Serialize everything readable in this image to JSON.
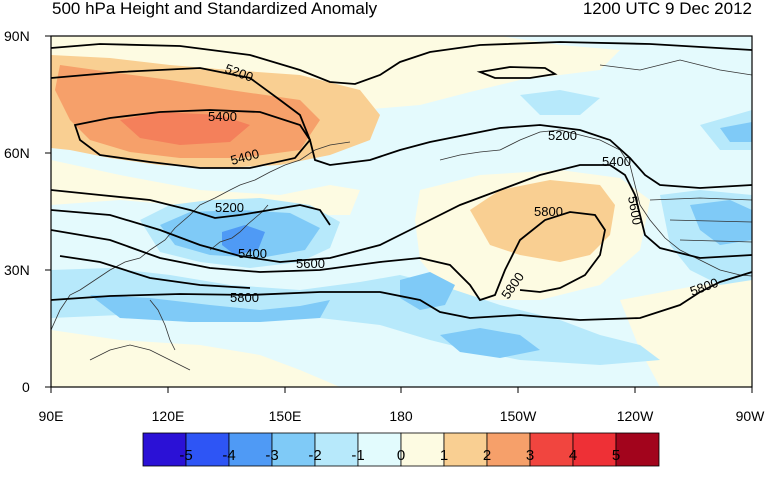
{
  "header": {
    "title": "500 hPa Height and Standardized Anomaly",
    "timestamp": "1200 UTC 9 Dec 2012"
  },
  "axes": {
    "lat_labels": [
      "90N",
      "60N",
      "30N",
      "0"
    ],
    "lon_labels": [
      "90E",
      "120E",
      "150E",
      "180",
      "150W",
      "120W",
      "90W"
    ]
  },
  "contour_labels": [
    "5200",
    "5400",
    "5400",
    "5200",
    "5400",
    "5600",
    "5800",
    "5200",
    "5400",
    "5600",
    "5800",
    "5800",
    "5800"
  ],
  "colorbar": {
    "labels": [
      "-5",
      "-4",
      "-3",
      "-2",
      "-1",
      "0",
      "1",
      "2",
      "3",
      "4",
      "5"
    ],
    "colors": [
      "#2b11d6",
      "#2e55f5",
      "#4f9af5",
      "#7fcaf7",
      "#b7e9fb",
      "#e2fbfd",
      "#fdfbe2",
      "#f9cf92",
      "#f6a06a",
      "#f1453f",
      "#ee3036",
      "#a2041c"
    ]
  },
  "colors": {
    "ocean_neutral": "#e6fafd",
    "land_line": "#333333",
    "contour": "#000000"
  }
}
